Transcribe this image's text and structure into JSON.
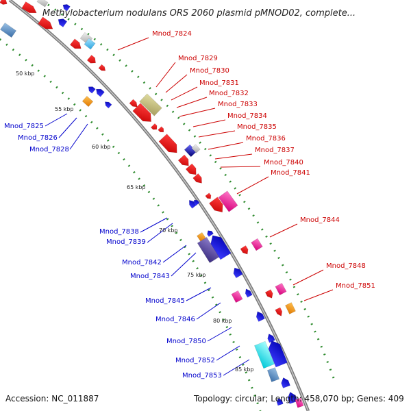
{
  "title": "Methylobacterium nodulans ORS 2060 plasmid pMNOD02, complete...",
  "footer": {
    "accession": "Accession: NC_011887",
    "summary": "Topology: circular; Length: 458,070 bp; Genes: 409"
  },
  "ticks": [
    "50 kbp",
    "55 kbp",
    "60 kbp",
    "65 kbp",
    "70 kbp",
    "75 kbp",
    "80 kbp",
    "85 kbp"
  ],
  "forward_labels": [
    "Mnod_7824",
    "Mnod_7829",
    "Mnod_7830",
    "Mnod_7831",
    "Mnod_7832",
    "Mnod_7833",
    "Mnod_7834",
    "Mnod_7835",
    "Mnod_7836",
    "Mnod_7837",
    "Mnod_7840",
    "Mnod_7841",
    "Mnod_7844",
    "Mnod_7848",
    "Mnod_7851"
  ],
  "reverse_labels": [
    "Mnod_7825",
    "Mnod_7826",
    "Mnod_7828",
    "Mnod_7838",
    "Mnod_7839",
    "Mnod_7842",
    "Mnod_7843",
    "Mnod_7845",
    "Mnod_7846",
    "Mnod_7850",
    "Mnod_7852",
    "Mnod_7853"
  ],
  "colors": {
    "forward": "#e60000",
    "reverse": "#1a1aff",
    "backbone": "#999999",
    "gc_dots": "#2e8b2e",
    "forward_label": "#cc0000",
    "reverse_label": "#0000cc"
  }
}
